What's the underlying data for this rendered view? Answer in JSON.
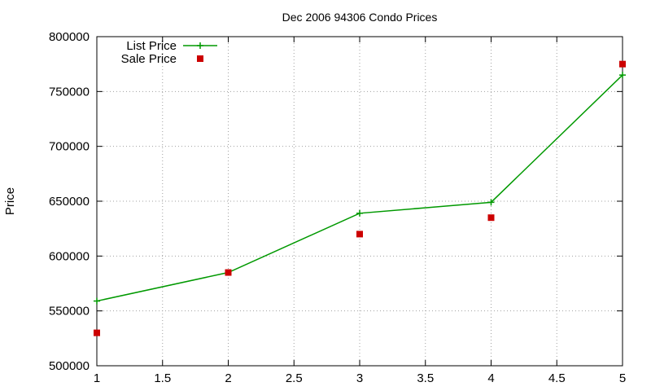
{
  "chart_data": {
    "type": "line",
    "title": "Dec 2006 94306 Condo Prices",
    "xlabel": "",
    "ylabel": "Price",
    "xlim": [
      1,
      5
    ],
    "ylim": [
      500000,
      800000
    ],
    "x_ticks": [
      1,
      1.5,
      2,
      2.5,
      3,
      3.5,
      4,
      4.5,
      5
    ],
    "y_ticks": [
      500000,
      550000,
      600000,
      650000,
      700000,
      750000,
      800000
    ],
    "x_tick_labels": [
      "1",
      "1.5",
      "2",
      "2.5",
      "3",
      "3.5",
      "4",
      "4.5",
      "5"
    ],
    "y_tick_labels": [
      "500000",
      "550000",
      "600000",
      "650000",
      "700000",
      "750000",
      "800000"
    ],
    "grid": true,
    "legend_position": "top-left",
    "series": [
      {
        "name": "List Price",
        "style": "line+points",
        "marker": "plus",
        "color": "#009900",
        "x": [
          1,
          2,
          3,
          4,
          5
        ],
        "values": [
          559000,
          585000,
          639000,
          649000,
          765000
        ]
      },
      {
        "name": "Sale Price",
        "style": "points",
        "marker": "square",
        "color": "#cc0000",
        "x": [
          1,
          2,
          3,
          4,
          5
        ],
        "values": [
          530000,
          585000,
          620000,
          635000,
          775000
        ]
      }
    ]
  }
}
